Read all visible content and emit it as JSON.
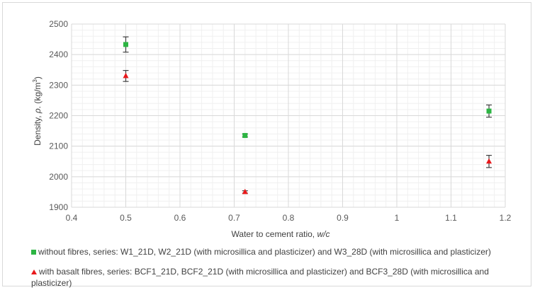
{
  "chart_data": {
    "type": "scatter",
    "xlabel": "Water to cement ratio, ",
    "xlabel_italic": "w/c",
    "ylabel_prefix": "Density, ",
    "ylabel_italic": "ρ",
    "ylabel_suffix": ". (kg/m",
    "ylabel_sup": "3",
    "ylabel_end": ")",
    "xlim": [
      0.4,
      1.2
    ],
    "ylim": [
      1900,
      2500
    ],
    "xticks": [
      0.4,
      0.5,
      0.6,
      0.7,
      0.8,
      0.9,
      1.0,
      1.1,
      1.2
    ],
    "xtick_labels": [
      "0.4",
      "0.5",
      "0.6",
      "0.7",
      "0.8",
      "0.9",
      "1",
      "1.1",
      "1.2"
    ],
    "yticks": [
      1900,
      2000,
      2100,
      2200,
      2300,
      2400,
      2500
    ],
    "ytick_labels": [
      "1900",
      "2000",
      "2100",
      "2200",
      "2300",
      "2400",
      "2500"
    ],
    "x_minor_step": 0.02,
    "y_minor_step": 20,
    "grid": true,
    "series": [
      {
        "name": "without fibres",
        "legend": "without fibres, series: W1_21D, W2_21D (with microsillica and plasticizer) and W3_28D (with microsillica and plasticizer)",
        "marker": "square",
        "color": "#2db543",
        "points": [
          {
            "x": 0.5,
            "y": 2433,
            "err": 25
          },
          {
            "x": 0.72,
            "y": 2135,
            "err": 5
          },
          {
            "x": 1.17,
            "y": 2215,
            "err": 20
          }
        ]
      },
      {
        "name": "with basalt fibres",
        "legend": "with basalt fibres, series: BCF1_21D, BCF2_21D (with microsillica and plasticizer) and BCF3_28D (with microsillica and plasticizer)",
        "marker": "triangle",
        "color": "#e8181b",
        "points": [
          {
            "x": 0.5,
            "y": 2330,
            "err": 18
          },
          {
            "x": 0.72,
            "y": 1950,
            "err": 4
          },
          {
            "x": 1.17,
            "y": 2050,
            "err": 20
          }
        ]
      }
    ]
  }
}
